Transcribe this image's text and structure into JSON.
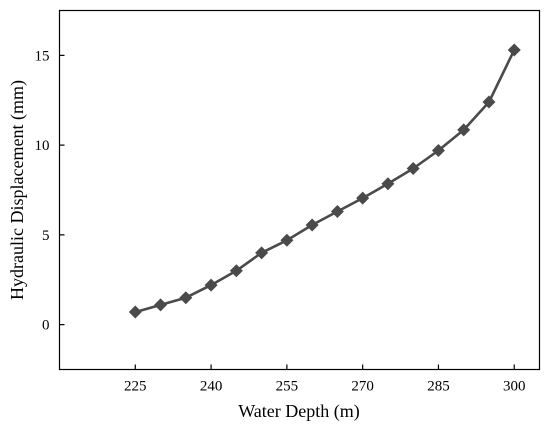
{
  "chart_data": {
    "type": "line",
    "xlabel": "Water Depth (m)",
    "ylabel": "Hydraulic Displacement (mm)",
    "xlim": [
      210,
      305
    ],
    "ylim": [
      -2.5,
      17.5
    ],
    "xticks": [
      225,
      240,
      255,
      270,
      285,
      300
    ],
    "yticks": [
      0,
      5,
      10,
      15
    ],
    "grid": false,
    "legend": "none",
    "marker": "diamond",
    "colors": {
      "line": "#4a4a4a",
      "marker": "#4a4a4a",
      "axis": "#000000"
    },
    "series": [
      {
        "x": [
          225,
          230,
          235,
          240,
          245,
          250,
          255,
          260,
          265,
          270,
          275,
          280,
          285,
          290,
          295,
          300
        ],
        "y": [
          0.7,
          1.1,
          1.5,
          2.2,
          3.0,
          4.0,
          4.7,
          5.55,
          6.3,
          7.05,
          7.85,
          8.7,
          9.7,
          10.85,
          12.4,
          15.3
        ]
      }
    ]
  }
}
